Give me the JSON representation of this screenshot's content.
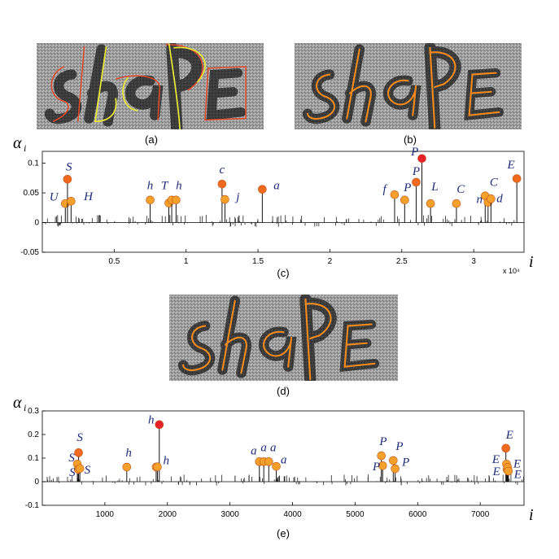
{
  "captions": {
    "a": "(a)",
    "b": "(b)",
    "c": "(c)",
    "d": "(d)",
    "e": "(e)"
  },
  "y_symbol": "α",
  "y_sub": "i",
  "x_symbol": "i",
  "colors": {
    "orange": "#f5a02a",
    "red_orange": "#ef6a1f",
    "red": "#e8202a",
    "label": "#1c2a7a",
    "contour_red": "#e04a2a",
    "contour_yellow": "#e7e83a",
    "contour_orange": "#f28a1e"
  },
  "chart_data": [
    {
      "id": "c",
      "type": "stem",
      "ylabel": "α_i",
      "xlabel": "i",
      "x_multiplier": "x 10⁴",
      "xlim": [
        0,
        3.35
      ],
      "ylim": [
        -0.05,
        0.12
      ],
      "yticks": [
        -0.05,
        0,
        0.05,
        0.1
      ],
      "ytick_labels": [
        "-0.05",
        "0",
        "0.05",
        "0.1"
      ],
      "xticks": [
        0.5,
        1,
        1.5,
        2,
        2.5,
        3
      ],
      "xtick_labels": [
        "0.5",
        "1",
        "1.5",
        "2",
        "2.5",
        "3"
      ],
      "markers": [
        {
          "x": 0.16,
          "y": 0.032,
          "label": "U",
          "c": "orange",
          "lx": -0.08,
          "ly": 0.005
        },
        {
          "x": 0.175,
          "y": 0.073,
          "label": "S",
          "c": "red_orange",
          "lx": 0.01,
          "ly": 0.015
        },
        {
          "x": 0.2,
          "y": 0.036,
          "label": "H",
          "c": "orange",
          "lx": 0.12,
          "ly": 0.002
        },
        {
          "x": 0.75,
          "y": 0.038,
          "label": "h",
          "c": "orange",
          "lx": 0.0,
          "ly": 0.018
        },
        {
          "x": 0.88,
          "y": 0.033,
          "label": "",
          "c": "orange",
          "lx": 0,
          "ly": 0
        },
        {
          "x": 0.9,
          "y": 0.038,
          "label": "T",
          "c": "orange",
          "lx": -0.05,
          "ly": 0.018
        },
        {
          "x": 0.93,
          "y": 0.038,
          "label": "h",
          "c": "orange",
          "lx": 0.02,
          "ly": 0.018
        },
        {
          "x": 1.25,
          "y": 0.065,
          "label": "c",
          "c": "red_orange",
          "lx": 0.0,
          "ly": 0.018
        },
        {
          "x": 1.27,
          "y": 0.039,
          "label": "j",
          "c": "orange",
          "lx": 0.09,
          "ly": -0.002
        },
        {
          "x": 1.53,
          "y": 0.056,
          "label": "a",
          "c": "red_orange",
          "lx": 0.1,
          "ly": 0.0
        },
        {
          "x": 2.45,
          "y": 0.047,
          "label": "f",
          "c": "orange",
          "lx": -0.07,
          "ly": 0.003
        },
        {
          "x": 2.52,
          "y": 0.038,
          "label": "P",
          "c": "orange",
          "lx": 0.02,
          "ly": 0.015
        },
        {
          "x": 2.6,
          "y": 0.068,
          "label": "P",
          "c": "red_orange",
          "lx": 0.0,
          "ly": 0.012
        },
        {
          "x": 2.64,
          "y": 0.108,
          "label": "P",
          "c": "red",
          "lx": -0.05,
          "ly": 0.005
        },
        {
          "x": 2.7,
          "y": 0.032,
          "label": "L",
          "c": "orange",
          "lx": 0.03,
          "ly": 0.022
        },
        {
          "x": 2.88,
          "y": 0.032,
          "label": "C",
          "c": "orange",
          "lx": 0.03,
          "ly": 0.018
        },
        {
          "x": 3.08,
          "y": 0.045,
          "label": "n",
          "c": "orange",
          "lx": -0.04,
          "ly": -0.012
        },
        {
          "x": 3.1,
          "y": 0.034,
          "label": "C",
          "c": "orange",
          "lx": 0.04,
          "ly": 0.028
        },
        {
          "x": 3.12,
          "y": 0.04,
          "label": "d",
          "c": "orange",
          "lx": 0.06,
          "ly": -0.006
        },
        {
          "x": 3.3,
          "y": 0.074,
          "label": "E",
          "c": "red_orange",
          "lx": -0.04,
          "ly": 0.017
        }
      ]
    },
    {
      "id": "e",
      "type": "stem",
      "ylabel": "α_i",
      "xlabel": "i",
      "xlim": [
        0,
        7700
      ],
      "ylim": [
        -0.1,
        0.3
      ],
      "yticks": [
        -0.1,
        0,
        0.1,
        0.2,
        0.3
      ],
      "ytick_labels": [
        "-0.1",
        "0",
        "0.1",
        "0.2",
        "0.3"
      ],
      "xticks": [
        1000,
        2000,
        3000,
        4000,
        5000,
        6000,
        7000
      ],
      "xtick_labels": [
        "1000",
        "2000",
        "3000",
        "4000",
        "5000",
        "6000",
        "7000"
      ],
      "markers": [
        {
          "x": 580,
          "y": 0.123,
          "label": "S",
          "c": "red_orange",
          "lx": 20,
          "ly": 0.05
        },
        {
          "x": 560,
          "y": 0.075,
          "label": "S",
          "c": "orange",
          "lx": -90,
          "ly": 0.012
        },
        {
          "x": 575,
          "y": 0.052,
          "label": "S",
          "c": "orange",
          "lx": -95,
          "ly": -0.028
        },
        {
          "x": 600,
          "y": 0.056,
          "label": "S",
          "c": "orange",
          "lx": 120,
          "ly": -0.022
        },
        {
          "x": 1350,
          "y": 0.062,
          "label": "h",
          "c": "orange",
          "lx": 30,
          "ly": 0.045
        },
        {
          "x": 1820,
          "y": 0.062,
          "label": "",
          "c": "orange",
          "lx": 0,
          "ly": 0
        },
        {
          "x": 1870,
          "y": 0.242,
          "label": "h",
          "c": "red",
          "lx": -130,
          "ly": 0.005
        },
        {
          "x": 1840,
          "y": 0.063,
          "label": "h",
          "c": "orange",
          "lx": 140,
          "ly": 0.012
        },
        {
          "x": 3470,
          "y": 0.085,
          "label": "a",
          "c": "orange",
          "lx": -90,
          "ly": 0.03
        },
        {
          "x": 3540,
          "y": 0.085,
          "label": "a",
          "c": "orange",
          "lx": 0,
          "ly": 0.045
        },
        {
          "x": 3620,
          "y": 0.085,
          "label": "a",
          "c": "orange",
          "lx": 70,
          "ly": 0.045
        },
        {
          "x": 3740,
          "y": 0.065,
          "label": "a",
          "c": "orange",
          "lx": 120,
          "ly": 0.012
        },
        {
          "x": 5420,
          "y": 0.11,
          "label": "P",
          "c": "orange",
          "lx": 30,
          "ly": 0.045
        },
        {
          "x": 5440,
          "y": 0.068,
          "label": "P",
          "c": "orange",
          "lx": -100,
          "ly": -0.02
        },
        {
          "x": 5610,
          "y": 0.09,
          "label": "P",
          "c": "orange",
          "lx": 100,
          "ly": 0.045
        },
        {
          "x": 5640,
          "y": 0.055,
          "label": "P",
          "c": "orange",
          "lx": 170,
          "ly": 0.012
        },
        {
          "x": 7410,
          "y": 0.142,
          "label": "E",
          "c": "red_orange",
          "lx": 60,
          "ly": 0.04
        },
        {
          "x": 7420,
          "y": 0.075,
          "label": "E",
          "c": "orange",
          "lx": -170,
          "ly": 0.005
        },
        {
          "x": 7430,
          "y": 0.052,
          "label": "E",
          "c": "orange",
          "lx": -170,
          "ly": -0.025
        },
        {
          "x": 7440,
          "y": 0.06,
          "label": "E",
          "c": "orange",
          "lx": 150,
          "ly": 0.0
        },
        {
          "x": 7450,
          "y": 0.045,
          "label": "E",
          "c": "orange",
          "lx": 150,
          "ly": -0.03
        }
      ]
    }
  ]
}
